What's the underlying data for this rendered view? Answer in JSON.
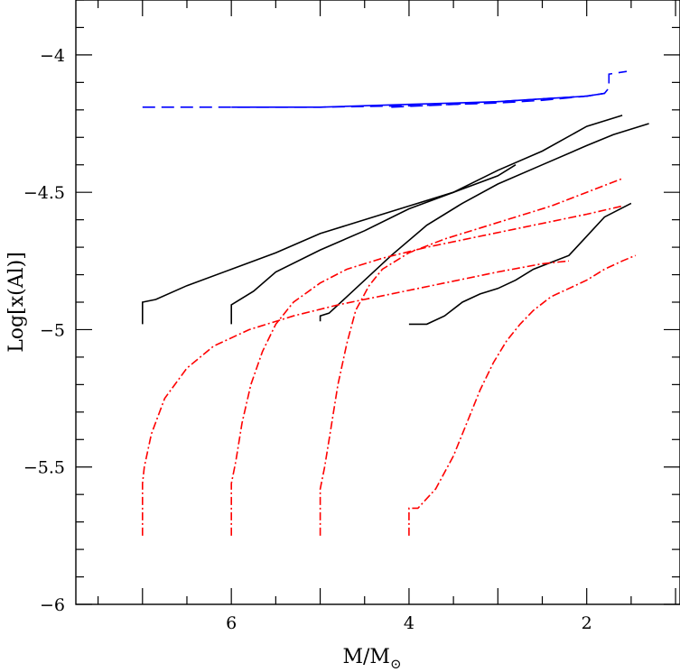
{
  "chart_data": {
    "type": "line",
    "title": "",
    "xlabel": "M/M",
    "xlabel_subscript": "⊙",
    "ylabel": "Log[x(Al)]",
    "xlim": [
      7.75,
      0.95
    ],
    "ylim": [
      -6.0,
      -3.8
    ],
    "x_reversed": true,
    "x_major_ticks": [
      6,
      4,
      2
    ],
    "x_tick_labels": [
      "6",
      "4",
      "2"
    ],
    "y_major_ticks": [
      -4.0,
      -4.5,
      -5.0,
      -5.5,
      -6.0
    ],
    "y_tick_labels": [
      "−4",
      "−4.5",
      "−5",
      "−5.5",
      "−6"
    ],
    "grid": false,
    "legend": "none",
    "colors": {
      "blue": "#0000ff",
      "black": "#000000",
      "red": "#ff0000"
    },
    "series": [
      {
        "color": "#0000ff",
        "style": "dashed",
        "x": [
          7.0,
          6.0,
          5.0,
          4.0,
          3.0,
          2.5,
          2.0,
          1.8,
          1.75,
          1.75,
          1.55
        ],
        "y": [
          -4.19,
          -4.19,
          -4.19,
          -4.185,
          -4.175,
          -4.165,
          -4.15,
          -4.14,
          -4.12,
          -4.07,
          -4.06
        ]
      },
      {
        "color": "#0000ff",
        "style": "solid",
        "x": [
          6.0,
          5.0,
          4.0,
          3.0,
          2.5,
          2.0,
          1.8
        ],
        "y": [
          -4.19,
          -4.19,
          -4.18,
          -4.17,
          -4.16,
          -4.15,
          -4.14
        ]
      },
      {
        "color": "#0000ff",
        "style": "dashed",
        "x": [
          4.2,
          3.5,
          3.0,
          2.5,
          2.0,
          1.8
        ],
        "y": [
          -4.19,
          -4.18,
          -4.17,
          -4.16,
          -4.15,
          -4.14
        ]
      },
      {
        "color": "#000000",
        "style": "solid",
        "x": [
          7.0,
          7.0,
          6.85,
          6.5,
          6.0,
          5.5,
          5.0,
          4.5,
          4.0,
          3.5,
          3.0,
          2.5,
          2.0,
          1.6
        ],
        "y": [
          -4.98,
          -4.9,
          -4.89,
          -4.84,
          -4.78,
          -4.72,
          -4.65,
          -4.6,
          -4.55,
          -4.5,
          -4.42,
          -4.35,
          -4.26,
          -4.22
        ]
      },
      {
        "color": "#000000",
        "style": "solid",
        "x": [
          6.0,
          6.0,
          5.75,
          5.5,
          5.0,
          4.5,
          4.0,
          3.5,
          3.0,
          2.8
        ],
        "y": [
          -4.98,
          -4.91,
          -4.86,
          -4.79,
          -4.71,
          -4.64,
          -4.56,
          -4.5,
          -4.44,
          -4.4
        ]
      },
      {
        "color": "#000000",
        "style": "solid",
        "x": [
          5.0,
          5.0,
          4.9,
          4.6,
          4.2,
          3.8,
          3.4,
          3.0,
          2.5,
          2.0,
          1.7,
          1.3
        ],
        "y": [
          -4.97,
          -4.95,
          -4.94,
          -4.85,
          -4.73,
          -4.62,
          -4.54,
          -4.47,
          -4.4,
          -4.33,
          -4.29,
          -4.25
        ]
      },
      {
        "color": "#000000",
        "style": "solid",
        "x": [
          4.0,
          3.8,
          3.6,
          3.4,
          3.2,
          3.0,
          2.8,
          2.6,
          2.2,
          2.0,
          1.8,
          1.5
        ],
        "y": [
          -4.98,
          -4.98,
          -4.95,
          -4.9,
          -4.87,
          -4.85,
          -4.82,
          -4.78,
          -4.73,
          -4.66,
          -4.59,
          -4.54
        ]
      },
      {
        "color": "#ff0000",
        "style": "dashdot",
        "x": [
          7.0,
          7.0,
          6.98,
          6.9,
          6.75,
          6.5,
          6.2,
          5.8,
          5.3,
          4.8,
          4.2,
          3.6,
          3.0,
          2.5,
          2.2
        ],
        "y": [
          -5.75,
          -5.56,
          -5.5,
          -5.38,
          -5.25,
          -5.14,
          -5.06,
          -5.0,
          -4.95,
          -4.91,
          -4.87,
          -4.83,
          -4.79,
          -4.76,
          -4.75
        ]
      },
      {
        "color": "#ff0000",
        "style": "dashdot",
        "x": [
          6.0,
          6.0,
          5.95,
          5.88,
          5.78,
          5.65,
          5.5,
          5.3,
          5.0,
          4.7,
          4.3,
          3.8,
          3.2,
          2.6,
          2.0,
          1.6
        ],
        "y": [
          -5.75,
          -5.56,
          -5.48,
          -5.34,
          -5.2,
          -5.08,
          -4.98,
          -4.9,
          -4.83,
          -4.78,
          -4.74,
          -4.7,
          -4.66,
          -4.62,
          -4.58,
          -4.55
        ]
      },
      {
        "color": "#ff0000",
        "style": "dashdot",
        "x": [
          5.0,
          5.0,
          4.95,
          4.88,
          4.8,
          4.7,
          4.6,
          4.45,
          4.3,
          4.0,
          3.6,
          3.2,
          2.8,
          2.4,
          2.0,
          1.6
        ],
        "y": [
          -5.75,
          -5.58,
          -5.5,
          -5.36,
          -5.2,
          -5.05,
          -4.93,
          -4.84,
          -4.78,
          -4.72,
          -4.67,
          -4.63,
          -4.59,
          -4.55,
          -4.5,
          -4.45
        ]
      },
      {
        "color": "#ff0000",
        "style": "dashdot",
        "x": [
          4.0,
          4.0,
          3.9,
          3.7,
          3.5,
          3.35,
          3.2,
          3.05,
          2.9,
          2.75,
          2.6,
          2.4,
          2.2,
          2.0,
          1.8,
          1.6,
          1.45
        ],
        "y": [
          -5.75,
          -5.65,
          -5.65,
          -5.58,
          -5.46,
          -5.34,
          -5.22,
          -5.12,
          -5.04,
          -4.98,
          -4.93,
          -4.88,
          -4.85,
          -4.82,
          -4.78,
          -4.75,
          -4.73
        ]
      }
    ]
  }
}
